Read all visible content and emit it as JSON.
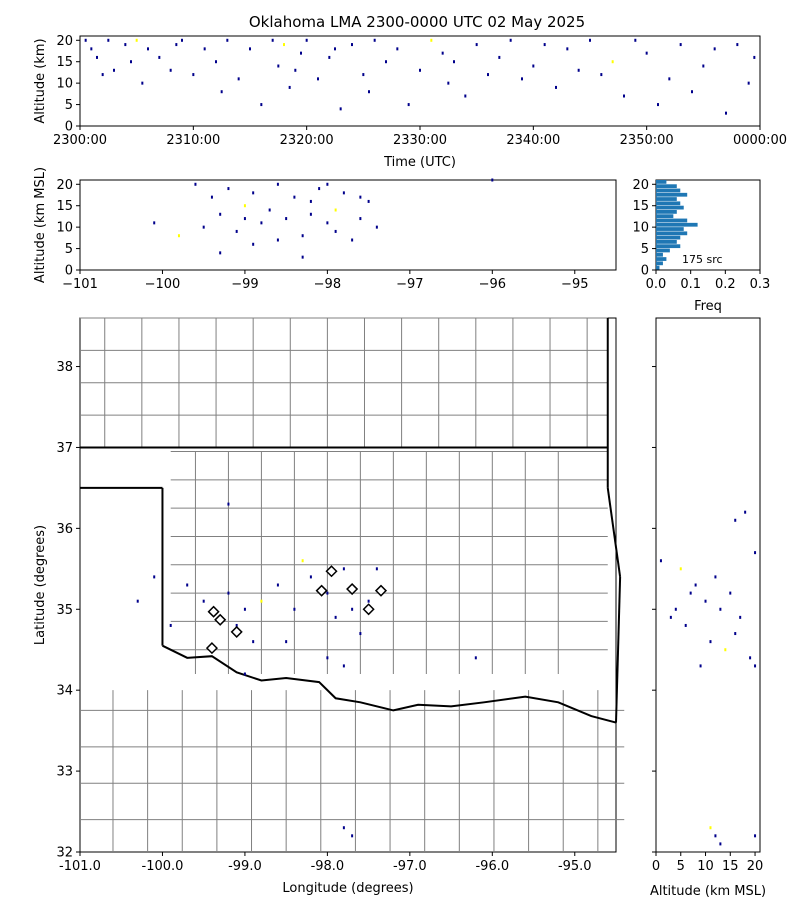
{
  "title": "Oklahoma LMA 2300-0000 UTC 02 May 2025",
  "colors": {
    "source_dark": "#00008b",
    "source_light": "#ffff00",
    "histogram": "#1f77b4",
    "state_border": "#000000",
    "county_border": "#808080",
    "station_marker": "#000000"
  },
  "icons": {
    "station": "diamond-icon"
  },
  "chart_data": [
    {
      "type": "scatter",
      "panel": "time-altitude",
      "xlabel": "Time (UTC)",
      "ylabel": "Altitude (km)",
      "xlim_minutes": [
        0,
        60
      ],
      "ylim": [
        0,
        21
      ],
      "xticks": [
        {
          "v": 0,
          "label": "2300:00"
        },
        {
          "v": 10,
          "label": "2310:00"
        },
        {
          "v": 20,
          "label": "2320:00"
        },
        {
          "v": 30,
          "label": "2330:00"
        },
        {
          "v": 40,
          "label": "2340:00"
        },
        {
          "v": 50,
          "label": "2350:00"
        },
        {
          "v": 60,
          "label": "0000:00"
        }
      ],
      "yticks": [
        0,
        5,
        10,
        15,
        20
      ],
      "points": [
        [
          0.5,
          20
        ],
        [
          1,
          18
        ],
        [
          1.5,
          16
        ],
        [
          2,
          12
        ],
        [
          2.5,
          20
        ],
        [
          3,
          13
        ],
        [
          4,
          19
        ],
        [
          4.5,
          15
        ],
        [
          5,
          20
        ],
        [
          5.5,
          10
        ],
        [
          6,
          18
        ],
        [
          7,
          16
        ],
        [
          8,
          13
        ],
        [
          8.5,
          19
        ],
        [
          9,
          20
        ],
        [
          10,
          12
        ],
        [
          11,
          18
        ],
        [
          12,
          15
        ],
        [
          12.5,
          8
        ],
        [
          13,
          20
        ],
        [
          14,
          11
        ],
        [
          15,
          18
        ],
        [
          16,
          5
        ],
        [
          17,
          20
        ],
        [
          17.5,
          14
        ],
        [
          18,
          19
        ],
        [
          18.5,
          9
        ],
        [
          19,
          13
        ],
        [
          19.5,
          17
        ],
        [
          20,
          20
        ],
        [
          21,
          11
        ],
        [
          22,
          16
        ],
        [
          22.5,
          18
        ],
        [
          23,
          4
        ],
        [
          24,
          19
        ],
        [
          25,
          12
        ],
        [
          25.5,
          8
        ],
        [
          26,
          20
        ],
        [
          27,
          15
        ],
        [
          28,
          18
        ],
        [
          29,
          5
        ],
        [
          30,
          13
        ],
        [
          31,
          20
        ],
        [
          32,
          17
        ],
        [
          32.5,
          10
        ],
        [
          33,
          15
        ],
        [
          34,
          7
        ],
        [
          35,
          19
        ],
        [
          36,
          12
        ],
        [
          37,
          16
        ],
        [
          38,
          20
        ],
        [
          39,
          11
        ],
        [
          40,
          14
        ],
        [
          41,
          19
        ],
        [
          42,
          9
        ],
        [
          43,
          18
        ],
        [
          44,
          13
        ],
        [
          45,
          20
        ],
        [
          46,
          12
        ],
        [
          47,
          15
        ],
        [
          48,
          7
        ],
        [
          49,
          20
        ],
        [
          50,
          17
        ],
        [
          51,
          5
        ],
        [
          52,
          11
        ],
        [
          53,
          19
        ],
        [
          54,
          8
        ],
        [
          55,
          14
        ],
        [
          56,
          18
        ],
        [
          57,
          3
        ],
        [
          58,
          19
        ],
        [
          59,
          10
        ],
        [
          59.5,
          16
        ]
      ]
    },
    {
      "type": "scatter",
      "panel": "longitude-altitude",
      "xlabel": "",
      "ylabel": "Altitude (km MSL)",
      "xlim": [
        -101,
        -94.5
      ],
      "ylim": [
        0,
        21
      ],
      "xticks": [
        -101,
        -100,
        -99,
        -98,
        -97,
        -96,
        -95
      ],
      "yticks": [
        0,
        5,
        10,
        15,
        20
      ],
      "points": [
        [
          -99.6,
          20
        ],
        [
          -99.4,
          17
        ],
        [
          -99.3,
          13
        ],
        [
          -99.2,
          19
        ],
        [
          -99.1,
          9
        ],
        [
          -99.0,
          15
        ],
        [
          -98.9,
          18
        ],
        [
          -98.8,
          11
        ],
        [
          -98.7,
          14
        ],
        [
          -98.6,
          20
        ],
        [
          -98.5,
          12
        ],
        [
          -98.4,
          17
        ],
        [
          -98.3,
          8
        ],
        [
          -98.2,
          16
        ],
        [
          -98.1,
          19
        ],
        [
          -98.0,
          11
        ],
        [
          -97.9,
          14
        ],
        [
          -97.8,
          18
        ],
        [
          -97.7,
          7
        ],
        [
          -97.6,
          12
        ],
        [
          -97.5,
          16
        ],
        [
          -97.4,
          10
        ],
        [
          -99.5,
          10
        ],
        [
          -99.3,
          4
        ],
        [
          -98.9,
          6
        ],
        [
          -98.3,
          3
        ],
        [
          -98.0,
          20
        ],
        [
          -99.8,
          8
        ],
        [
          -100.1,
          11
        ],
        [
          -96.0,
          21
        ],
        [
          -99.0,
          12
        ],
        [
          -98.6,
          7
        ],
        [
          -98.2,
          13
        ],
        [
          -97.9,
          9
        ],
        [
          -97.6,
          17
        ]
      ]
    },
    {
      "type": "bar",
      "panel": "altitude-histogram",
      "xlabel": "Freq",
      "annotation": "175 src",
      "xlim": [
        0,
        0.3
      ],
      "xticks": [
        0.0,
        0.1,
        0.2,
        0.3
      ],
      "ylim": [
        0,
        21
      ],
      "yticks": [
        0,
        5,
        10,
        15,
        20
      ],
      "bin_km": 1,
      "freq": [
        0.01,
        0.02,
        0.03,
        0.02,
        0.04,
        0.07,
        0.06,
        0.07,
        0.09,
        0.08,
        0.12,
        0.09,
        0.05,
        0.06,
        0.08,
        0.07,
        0.06,
        0.09,
        0.07,
        0.06,
        0.03
      ]
    },
    {
      "type": "scatter",
      "panel": "plan-view",
      "xlabel": "Longitude (degrees)",
      "ylabel": "Latitude (degrees)",
      "xlim": [
        -101,
        -94.5
      ],
      "ylim": [
        32,
        38.6
      ],
      "xticks": [
        {
          "v": -101,
          "label": "-101.0"
        },
        {
          "v": -100,
          "label": "-100.0"
        },
        {
          "v": -99,
          "label": "-99.0"
        },
        {
          "v": -98,
          "label": "-98.0"
        },
        {
          "v": -97,
          "label": "-97.0"
        },
        {
          "v": -96,
          "label": "-96.0"
        },
        {
          "v": -95,
          "label": "-95.0"
        }
      ],
      "yticks": [
        32,
        33,
        34,
        35,
        36,
        37,
        38
      ],
      "points": [
        [
          -99.5,
          35.1
        ],
        [
          -99.3,
          34.9
        ],
        [
          -99.2,
          35.2
        ],
        [
          -99.1,
          34.8
        ],
        [
          -99.0,
          35.0
        ],
        [
          -98.9,
          34.6
        ],
        [
          -98.8,
          35.1
        ],
        [
          -98.6,
          35.3
        ],
        [
          -98.4,
          35.0
        ],
        [
          -98.2,
          35.4
        ],
        [
          -98.0,
          35.2
        ],
        [
          -97.9,
          34.9
        ],
        [
          -97.8,
          35.5
        ],
        [
          -97.7,
          35.0
        ],
        [
          -97.6,
          34.7
        ],
        [
          -97.5,
          35.1
        ],
        [
          -99.4,
          34.5
        ],
        [
          -99.7,
          35.3
        ],
        [
          -100.3,
          35.1
        ],
        [
          -98.3,
          35.6
        ],
        [
          -98.0,
          34.4
        ],
        [
          -97.8,
          34.3
        ],
        [
          -96.2,
          34.4
        ],
        [
          -99.9,
          34.8
        ],
        [
          -100.1,
          35.4
        ],
        [
          -97.8,
          32.3
        ],
        [
          -97.7,
          32.2
        ],
        [
          -99.0,
          34.2
        ],
        [
          -98.5,
          34.6
        ],
        [
          -97.4,
          35.5
        ],
        [
          -99.2,
          36.3
        ]
      ],
      "stations": [
        [
          -99.38,
          34.97
        ],
        [
          -99.3,
          34.87
        ],
        [
          -99.1,
          34.72
        ],
        [
          -99.4,
          34.52
        ],
        [
          -98.07,
          35.23
        ],
        [
          -97.95,
          35.47
        ],
        [
          -97.7,
          35.25
        ],
        [
          -97.5,
          35.0
        ],
        [
          -97.35,
          35.23
        ]
      ]
    },
    {
      "type": "scatter",
      "panel": "altitude-latitude",
      "xlabel": "Altitude (km MSL)",
      "ylabel": "",
      "xlim": [
        0,
        21
      ],
      "xticks": [
        0,
        5,
        10,
        15,
        20
      ],
      "ylim": [
        32,
        38.6
      ],
      "points": [
        [
          18,
          36.2
        ],
        [
          16,
          36.1
        ],
        [
          20,
          35.7
        ],
        [
          1,
          35.6
        ],
        [
          5,
          35.5
        ],
        [
          8,
          35.3
        ],
        [
          12,
          35.4
        ],
        [
          15,
          35.2
        ],
        [
          10,
          35.1
        ],
        [
          13,
          35.0
        ],
        [
          17,
          34.9
        ],
        [
          6,
          34.8
        ],
        [
          11,
          34.6
        ],
        [
          14,
          34.5
        ],
        [
          19,
          34.4
        ],
        [
          9,
          34.3
        ],
        [
          4,
          35.0
        ],
        [
          7,
          35.2
        ],
        [
          16,
          34.7
        ],
        [
          20,
          34.3
        ],
        [
          3,
          34.9
        ],
        [
          12,
          32.2
        ],
        [
          11,
          32.3
        ],
        [
          13,
          32.1
        ],
        [
          20,
          32.2
        ]
      ]
    }
  ]
}
